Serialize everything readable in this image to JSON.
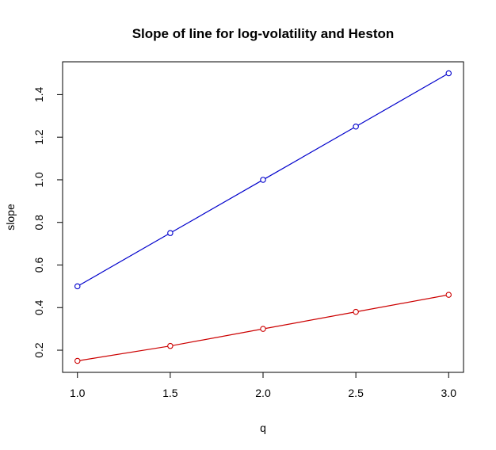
{
  "chart_data": {
    "type": "line",
    "title": "Slope of line for log-volatility and Heston",
    "xlabel": "q",
    "ylabel": "slope",
    "x": [
      1.0,
      1.5,
      2.0,
      2.5,
      3.0
    ],
    "xticks": [
      "1.0",
      "1.5",
      "2.0",
      "2.5",
      "3.0"
    ],
    "yticks": [
      "0.2",
      "0.4",
      "0.6",
      "0.8",
      "1.0",
      "1.2",
      "1.4"
    ],
    "xlim": [
      0.92,
      3.08
    ],
    "ylim": [
      0.096,
      1.554
    ],
    "grid": false,
    "markers": "open-circle",
    "series": [
      {
        "color": "#0000cc",
        "values": [
          0.5,
          0.75,
          1.0,
          1.25,
          1.5
        ]
      },
      {
        "color": "#cc0000",
        "values": [
          0.15,
          0.22,
          0.3,
          0.38,
          0.46
        ]
      }
    ]
  }
}
